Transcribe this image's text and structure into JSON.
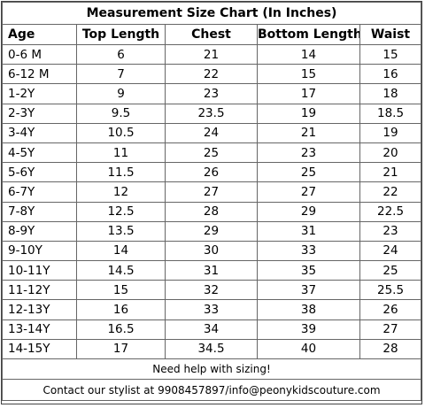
{
  "title": "Measurement Size Chart (In Inches)",
  "columns": [
    "Age",
    "Top Length",
    "Chest",
    "Bottom Length",
    "Waist"
  ],
  "rows": [
    [
      "0-6 M",
      "6",
      "21",
      "14",
      "15"
    ],
    [
      "6-12 M",
      "7",
      "22",
      "15",
      "16"
    ],
    [
      "1-2Y",
      "9",
      "23",
      "17",
      "18"
    ],
    [
      "2-3Y",
      "9.5",
      "23.5",
      "19",
      "18.5"
    ],
    [
      "3-4Y",
      "10.5",
      "24",
      "21",
      "19"
    ],
    [
      "4-5Y",
      "11",
      "25",
      "23",
      "20"
    ],
    [
      "5-6Y",
      "11.5",
      "26",
      "25",
      "21"
    ],
    [
      "6-7Y",
      "12",
      "27",
      "27",
      "22"
    ],
    [
      "7-8Y",
      "12.5",
      "28",
      "29",
      "22.5"
    ],
    [
      "8-9Y",
      "13.5",
      "29",
      "31",
      "23"
    ],
    [
      "9-10Y",
      "14",
      "30",
      "33",
      "24"
    ],
    [
      "10-11Y",
      "14.5",
      "31",
      "35",
      "25"
    ],
    [
      "11-12Y",
      "15",
      "32",
      "37",
      "25.5"
    ],
    [
      "12-13Y",
      "16",
      "33",
      "38",
      "26"
    ],
    [
      "13-14Y",
      "16.5",
      "34",
      "39",
      "27"
    ],
    [
      "14-15Y",
      "17",
      "34.5",
      "40",
      "28"
    ]
  ],
  "footer": {
    "help": "Need help with sizing!",
    "contact": "Contact our stylist at 9908457897/info@peonykidscouture.com"
  }
}
